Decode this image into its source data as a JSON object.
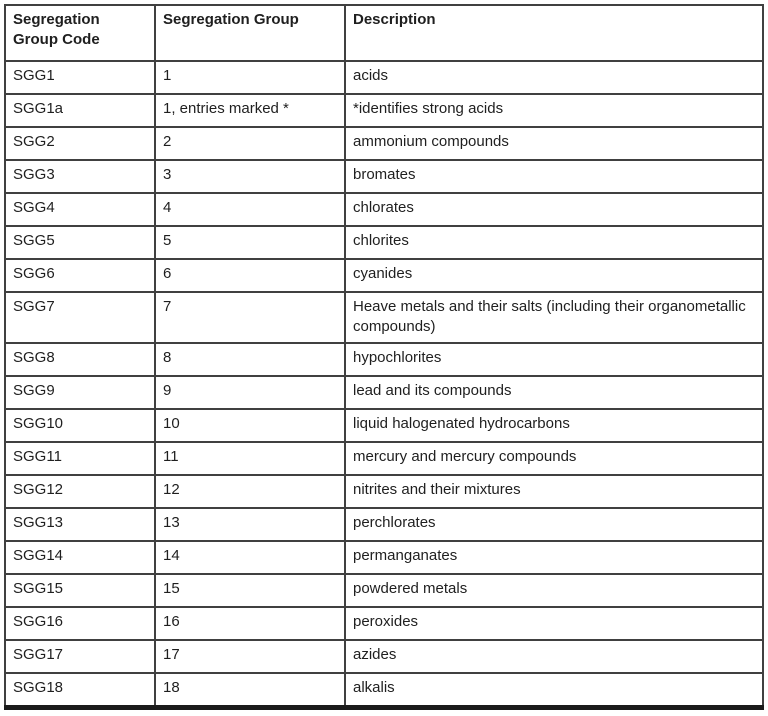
{
  "table": {
    "headers": [
      "Segregation Group Code",
      "Segregation Group",
      "Description"
    ],
    "rows": [
      {
        "code": "SGG1",
        "group": "1",
        "description": "acids"
      },
      {
        "code": "SGG1a",
        "group": "1, entries marked *",
        "description": "*identifies strong acids"
      },
      {
        "code": "SGG2",
        "group": "2",
        "description": "ammonium compounds"
      },
      {
        "code": "SGG3",
        "group": "3",
        "description": "bromates"
      },
      {
        "code": "SGG4",
        "group": "4",
        "description": "chlorates"
      },
      {
        "code": "SGG5",
        "group": "5",
        "description": "chlorites"
      },
      {
        "code": "SGG6",
        "group": "6",
        "description": "cyanides"
      },
      {
        "code": "SGG7",
        "group": "7",
        "description": "Heave metals and their salts (including their organometallic compounds)"
      },
      {
        "code": "SGG8",
        "group": "8",
        "description": "hypochlorites"
      },
      {
        "code": "SGG9",
        "group": "9",
        "description": "lead and its compounds"
      },
      {
        "code": "SGG10",
        "group": "10",
        "description": "liquid halogenated hydrocarbons"
      },
      {
        "code": "SGG11",
        "group": "11",
        "description": "mercury and mercury compounds"
      },
      {
        "code": "SGG12",
        "group": "12",
        "description": "nitrites and their mixtures"
      },
      {
        "code": "SGG13",
        "group": "13",
        "description": "perchlorates"
      },
      {
        "code": "SGG14",
        "group": "14",
        "description": "permanganates"
      },
      {
        "code": "SGG15",
        "group": "15",
        "description": "powdered metals"
      },
      {
        "code": "SGG16",
        "group": "16",
        "description": "peroxides"
      },
      {
        "code": "SGG17",
        "group": "17",
        "description": "azides"
      },
      {
        "code": "SGG18",
        "group": "18",
        "description": "alkalis"
      }
    ]
  },
  "colors": {
    "border": "#404040",
    "bottom_border": "#1b1b1b",
    "text": "#1f1f1f",
    "background": "#ffffff"
  }
}
